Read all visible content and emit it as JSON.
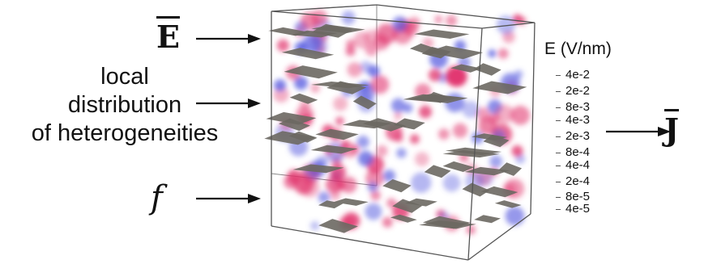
{
  "labels": {
    "e_field": "E",
    "local_lines": [
      "local",
      "distribution",
      "of heterogeneities"
    ],
    "f_symbol": "f",
    "current": "J"
  },
  "legend": {
    "title": "E (V/nm)",
    "ticks": [
      "4e-2",
      "2e-2",
      "8e-3",
      "4e-3",
      "2e-3",
      "8e-4",
      "4e-4",
      "2e-4",
      "8e-5",
      "4e-5"
    ]
  },
  "colors": {
    "arrow": "#111111",
    "cube_edge": "#555555",
    "platelet": "#6b6862",
    "blob_red": "#e0306a",
    "blob_blue": "#5a5ee0"
  }
}
